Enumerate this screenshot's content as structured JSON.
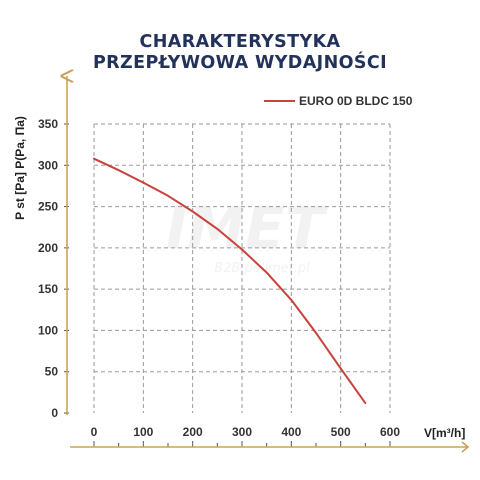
{
  "chart_data": {
    "type": "line",
    "title_lines": [
      "CHARAKTERYSTYKA",
      "PRZEPŁYWOWA WYDAJNOŚCI"
    ],
    "xlabel": "V[m³/h]",
    "ylabel": "P st [Pa] P(Pa, Па)",
    "xlim": [
      0,
      600
    ],
    "ylim": [
      0,
      350
    ],
    "x_ticks": [
      "0",
      "100",
      "200",
      "300",
      "400",
      "500",
      "600"
    ],
    "y_ticks": [
      "0",
      "50",
      "100",
      "150",
      "200",
      "250",
      "300",
      "350"
    ],
    "grid": true,
    "legend_position": "top-right",
    "series": [
      {
        "name": "EURO 0D BLDC 150",
        "color": "#c8413c",
        "x": [
          0,
          50,
          100,
          150,
          200,
          250,
          300,
          350,
          400,
          450,
          500,
          550
        ],
        "y": [
          308,
          294,
          279,
          263,
          244,
          223,
          198,
          170,
          137,
          97,
          54,
          12
        ]
      }
    ],
    "watermark": "IMET B2B.polimet.pl"
  }
}
